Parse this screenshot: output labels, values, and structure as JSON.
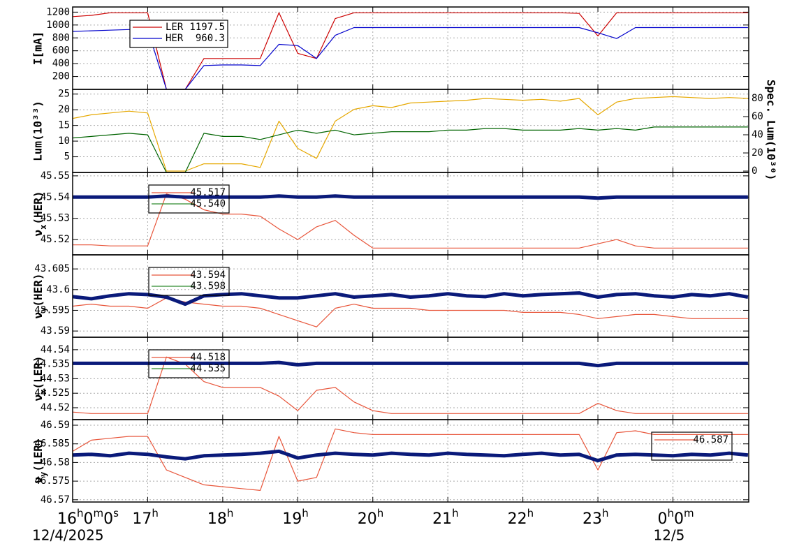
{
  "chart_data": [
    {
      "type": "line",
      "ylabel": "I[mA]",
      "ylim": [
        0,
        1280
      ],
      "yticks": [
        200,
        400,
        600,
        800,
        1000,
        1200
      ],
      "xlim": [
        0,
        9.01
      ],
      "grid": true,
      "legend_corner": "upper left",
      "x": [
        0,
        0.25,
        0.5,
        0.75,
        1,
        1.25,
        1.5,
        1.75,
        2,
        2.25,
        2.5,
        2.75,
        3,
        3.25,
        3.5,
        3.75,
        4,
        4.25,
        4.5,
        4.75,
        5,
        5.25,
        5.5,
        5.75,
        6,
        6.25,
        6.5,
        6.75,
        7,
        7.25,
        7.5,
        7.75,
        8,
        8.25,
        8.5,
        8.75,
        9
      ],
      "series": [
        {
          "name": "LER",
          "legend_value": "1197.5",
          "color": "#cc0000",
          "values": [
            1130,
            1150,
            1190,
            1190,
            1190,
            0,
            0,
            480,
            480,
            480,
            480,
            1190,
            560,
            480,
            1100,
            1190,
            1190,
            1190,
            1190,
            1190,
            1190,
            1190,
            1190,
            1190,
            1190,
            1190,
            1190,
            1180,
            830,
            1190,
            1190,
            1190,
            1190,
            1190,
            1190,
            1190,
            1190
          ]
        },
        {
          "name": "HER",
          "legend_value": "960.3",
          "color": "#0000cc",
          "values": [
            900,
            910,
            920,
            930,
            935,
            0,
            0,
            370,
            380,
            380,
            370,
            700,
            680,
            480,
            840,
            960,
            960,
            960,
            960,
            960,
            960,
            960,
            960,
            960,
            960,
            960,
            960,
            960,
            880,
            790,
            960,
            960,
            960,
            960,
            960,
            960,
            960
          ]
        }
      ]
    },
    {
      "type": "line",
      "ylabel": "Lum(10³³)",
      "ylim": [
        0,
        26.5
      ],
      "yticks": [
        5,
        10,
        15,
        20,
        25
      ],
      "y2label": "Spec. Lum(10³⁰)",
      "y2lim": [
        -1.5,
        90
      ],
      "y2ticks": [
        0,
        20,
        40,
        60,
        80
      ],
      "xlim": [
        0,
        9.01
      ],
      "grid": true,
      "x": [
        0,
        0.25,
        0.5,
        0.75,
        1,
        1.25,
        1.5,
        1.75,
        2,
        2.25,
        2.5,
        2.75,
        3,
        3.25,
        3.5,
        3.75,
        4,
        4.25,
        4.5,
        4.75,
        5,
        5.25,
        5.5,
        5.75,
        6,
        6.25,
        6.5,
        6.75,
        7,
        7.25,
        7.5,
        7.75,
        8,
        8.25,
        8.5,
        8.75,
        9
      ],
      "series": [
        {
          "color": "#e6a800",
          "axis": "y2",
          "values": [
            58,
            62,
            64,
            66,
            64,
            0,
            0,
            8,
            8,
            8,
            4,
            55,
            25,
            14,
            55,
            68,
            72,
            70,
            75,
            76,
            77,
            78,
            80,
            79,
            78,
            79,
            77,
            80,
            62,
            76,
            80,
            81,
            82,
            81,
            80,
            81,
            80
          ]
        },
        {
          "color": "#006400",
          "values": [
            11,
            11.5,
            12,
            12.5,
            12,
            0,
            0,
            12.5,
            11.5,
            11.5,
            10.5,
            12,
            13.5,
            12.5,
            13.5,
            12,
            12.5,
            13,
            13,
            13,
            13.5,
            13.5,
            14,
            14,
            13.5,
            13.5,
            13.5,
            14,
            13.5,
            14,
            13.5,
            14.5,
            14.5,
            14.5,
            14.5,
            14.5,
            14.5
          ]
        }
      ]
    },
    {
      "type": "line",
      "ylabel": "νx(HER)",
      "ylim": [
        45.5128,
        45.5516
      ],
      "yticks": [
        45.52,
        45.53,
        45.54,
        45.55
      ],
      "xlim": [
        0,
        9.01
      ],
      "grid": true,
      "legend_corner": "upper left",
      "legend": [
        {
          "label": "45.517",
          "color": "#e8553a"
        },
        {
          "label": "45.540",
          "color": "#2e8b2e"
        }
      ],
      "x": [
        0,
        0.25,
        0.5,
        0.75,
        1,
        1.25,
        1.5,
        1.75,
        2,
        2.25,
        2.5,
        2.75,
        3,
        3.25,
        3.5,
        3.75,
        4,
        4.25,
        4.5,
        4.75,
        5,
        5.25,
        5.5,
        5.75,
        6,
        6.25,
        6.5,
        6.75,
        7,
        7.25,
        7.5,
        7.75,
        8,
        8.25,
        8.5,
        8.75,
        9
      ],
      "series": [
        {
          "color": "#e8553a",
          "values": [
            45.5175,
            45.5175,
            45.517,
            45.517,
            45.517,
            45.5415,
            45.539,
            45.534,
            45.532,
            45.532,
            45.531,
            45.525,
            45.52,
            45.526,
            45.529,
            45.522,
            45.516,
            45.516,
            45.516,
            45.516,
            45.516,
            45.516,
            45.516,
            45.516,
            45.516,
            45.516,
            45.516,
            45.516,
            45.518,
            45.52,
            45.517,
            45.516,
            45.516,
            45.516,
            45.516,
            45.516,
            45.516
          ]
        },
        {
          "color": "#0a1a7a",
          "marker": true,
          "values": [
            45.54,
            45.54,
            45.54,
            45.54,
            45.54,
            45.5405,
            45.54,
            45.54,
            45.54,
            45.54,
            45.54,
            45.5405,
            45.54,
            45.54,
            45.5405,
            45.54,
            45.54,
            45.54,
            45.54,
            45.54,
            45.54,
            45.54,
            45.54,
            45.54,
            45.54,
            45.54,
            45.54,
            45.54,
            45.5395,
            45.54,
            45.54,
            45.54,
            45.54,
            45.54,
            45.54,
            45.54,
            45.54
          ]
        }
      ]
    },
    {
      "type": "line",
      "ylabel": "νy(HER)",
      "ylim": [
        43.5885,
        43.6084
      ],
      "yticks": [
        43.59,
        43.595,
        43.6,
        43.605
      ],
      "xlim": [
        0,
        9.01
      ],
      "grid": true,
      "legend_corner": "upper left",
      "legend": [
        {
          "label": "43.594",
          "color": "#e8553a"
        },
        {
          "label": "43.598",
          "color": "#2e8b2e"
        }
      ],
      "x": [
        0,
        0.25,
        0.5,
        0.75,
        1,
        1.25,
        1.5,
        1.75,
        2,
        2.25,
        2.5,
        2.75,
        3,
        3.25,
        3.5,
        3.75,
        4,
        4.25,
        4.5,
        4.75,
        5,
        5.25,
        5.5,
        5.75,
        6,
        6.25,
        6.5,
        6.75,
        7,
        7.25,
        7.5,
        7.75,
        8,
        8.25,
        8.5,
        8.75,
        9
      ],
      "series": [
        {
          "color": "#e8553a",
          "values": [
            43.596,
            43.5965,
            43.596,
            43.596,
            43.5955,
            43.598,
            43.597,
            43.5965,
            43.596,
            43.596,
            43.5955,
            43.594,
            43.5925,
            43.591,
            43.5955,
            43.5965,
            43.5955,
            43.5955,
            43.5955,
            43.595,
            43.595,
            43.595,
            43.595,
            43.595,
            43.5945,
            43.5945,
            43.5945,
            43.594,
            43.593,
            43.5935,
            43.594,
            43.594,
            43.5935,
            43.593,
            43.593,
            43.593,
            43.593
          ]
        },
        {
          "color": "#0a1a7a",
          "marker": true,
          "values": [
            43.5983,
            43.5978,
            43.5985,
            43.599,
            43.5988,
            43.5982,
            43.5965,
            43.5985,
            43.5988,
            43.599,
            43.5985,
            43.598,
            43.598,
            43.5985,
            43.599,
            43.5982,
            43.5985,
            43.5988,
            43.5982,
            43.5985,
            43.599,
            43.5985,
            43.5983,
            43.599,
            43.5985,
            43.5988,
            43.599,
            43.5992,
            43.5982,
            43.5988,
            43.599,
            43.5985,
            43.5982,
            43.5988,
            43.5985,
            43.599,
            43.5982
          ]
        }
      ]
    },
    {
      "type": "line",
      "ylabel": "νx(LER)",
      "ylim": [
        44.5159,
        44.5443
      ],
      "yticks": [
        44.52,
        44.525,
        44.53,
        44.535,
        44.54
      ],
      "xlim": [
        0,
        9.01
      ],
      "grid": true,
      "legend_corner": "upper left",
      "legend": [
        {
          "label": "44.518",
          "color": "#e8553a"
        },
        {
          "label": "44.535",
          "color": "#2e8b2e"
        }
      ],
      "x": [
        0,
        0.25,
        0.5,
        0.75,
        1,
        1.25,
        1.5,
        1.75,
        2,
        2.25,
        2.5,
        2.75,
        3,
        3.25,
        3.5,
        3.75,
        4,
        4.25,
        4.5,
        4.75,
        5,
        5.25,
        5.5,
        5.75,
        6,
        6.25,
        6.5,
        6.75,
        7,
        7.25,
        7.5,
        7.75,
        8,
        8.25,
        8.5,
        8.75,
        9
      ],
      "series": [
        {
          "color": "#e8553a",
          "values": [
            44.5185,
            44.518,
            44.518,
            44.518,
            44.518,
            44.5375,
            44.535,
            44.529,
            44.527,
            44.527,
            44.527,
            44.524,
            44.519,
            44.526,
            44.527,
            44.522,
            44.519,
            44.518,
            44.518,
            44.518,
            44.518,
            44.518,
            44.518,
            44.518,
            44.518,
            44.518,
            44.518,
            44.518,
            44.5215,
            44.519,
            44.518,
            44.518,
            44.518,
            44.518,
            44.518,
            44.518,
            44.518
          ]
        },
        {
          "color": "#0a1a7a",
          "marker": true,
          "values": [
            44.5353,
            44.5353,
            44.5353,
            44.5353,
            44.5353,
            44.5353,
            44.5353,
            44.5353,
            44.5353,
            44.5353,
            44.5353,
            44.5356,
            44.5348,
            44.5353,
            44.5353,
            44.5353,
            44.5353,
            44.5353,
            44.5353,
            44.5353,
            44.5353,
            44.5353,
            44.5353,
            44.5353,
            44.5353,
            44.5353,
            44.5353,
            44.5353,
            44.5345,
            44.5353,
            44.5353,
            44.5353,
            44.5353,
            44.5353,
            44.5353,
            44.5353,
            44.5353
          ]
        }
      ]
    },
    {
      "type": "line",
      "ylabel": "νy(LER)",
      "ylim": [
        46.5694,
        46.5915
      ],
      "yticks": [
        46.57,
        46.575,
        46.58,
        46.585,
        46.59
      ],
      "xlim": [
        0,
        9.01
      ],
      "grid": true,
      "legend_corner": "upper right",
      "legend": [
        {
          "label": "46.587",
          "color": "#e8553a"
        }
      ],
      "xticks": [
        {
          "value": 0,
          "label": "16h0m0s"
        },
        {
          "value": 1,
          "label": "17h"
        },
        {
          "value": 2,
          "label": "18h"
        },
        {
          "value": 3,
          "label": "19h"
        },
        {
          "value": 4,
          "label": "20h"
        },
        {
          "value": 5,
          "label": "21h"
        },
        {
          "value": 6,
          "label": "22h"
        },
        {
          "value": 7,
          "label": "23h"
        },
        {
          "value": 8,
          "label": "0h0m"
        }
      ],
      "x_date_ticks": [
        {
          "value": 0,
          "label": "12/4/2025"
        },
        {
          "value": 8,
          "label": "12/5"
        }
      ],
      "x": [
        0,
        0.25,
        0.5,
        0.75,
        1,
        1.25,
        1.5,
        1.75,
        2,
        2.25,
        2.5,
        2.75,
        3,
        3.25,
        3.5,
        3.75,
        4,
        4.25,
        4.5,
        4.75,
        5,
        5.25,
        5.5,
        5.75,
        6,
        6.25,
        6.5,
        6.75,
        7,
        7.25,
        7.5,
        7.75,
        8,
        8.25,
        8.5,
        8.75,
        9
      ],
      "series": [
        {
          "color": "#e8553a",
          "values": [
            46.583,
            46.586,
            46.5865,
            46.587,
            46.587,
            46.578,
            46.576,
            46.574,
            46.5735,
            46.573,
            46.5725,
            46.587,
            46.575,
            46.576,
            46.589,
            46.588,
            46.5875,
            46.5875,
            46.5875,
            46.5875,
            46.5875,
            46.5875,
            46.5875,
            46.5875,
            46.5875,
            46.5875,
            46.5875,
            46.5875,
            46.578,
            46.588,
            46.5885,
            46.5875,
            46.5875,
            46.5875,
            46.5875,
            46.5875,
            46.5875
          ]
        },
        {
          "color": "#0a1a7a",
          "marker": true,
          "values": [
            46.582,
            46.5822,
            46.5818,
            46.5825,
            46.5822,
            46.5815,
            46.581,
            46.5818,
            46.582,
            46.5822,
            46.5825,
            46.583,
            46.5812,
            46.582,
            46.5825,
            46.5822,
            46.582,
            46.5825,
            46.5822,
            46.582,
            46.5825,
            46.5822,
            46.582,
            46.5818,
            46.5822,
            46.5825,
            46.582,
            46.5822,
            46.5805,
            46.582,
            46.5822,
            46.582,
            46.5818,
            46.5822,
            46.582,
            46.5825,
            46.582
          ]
        }
      ]
    }
  ]
}
